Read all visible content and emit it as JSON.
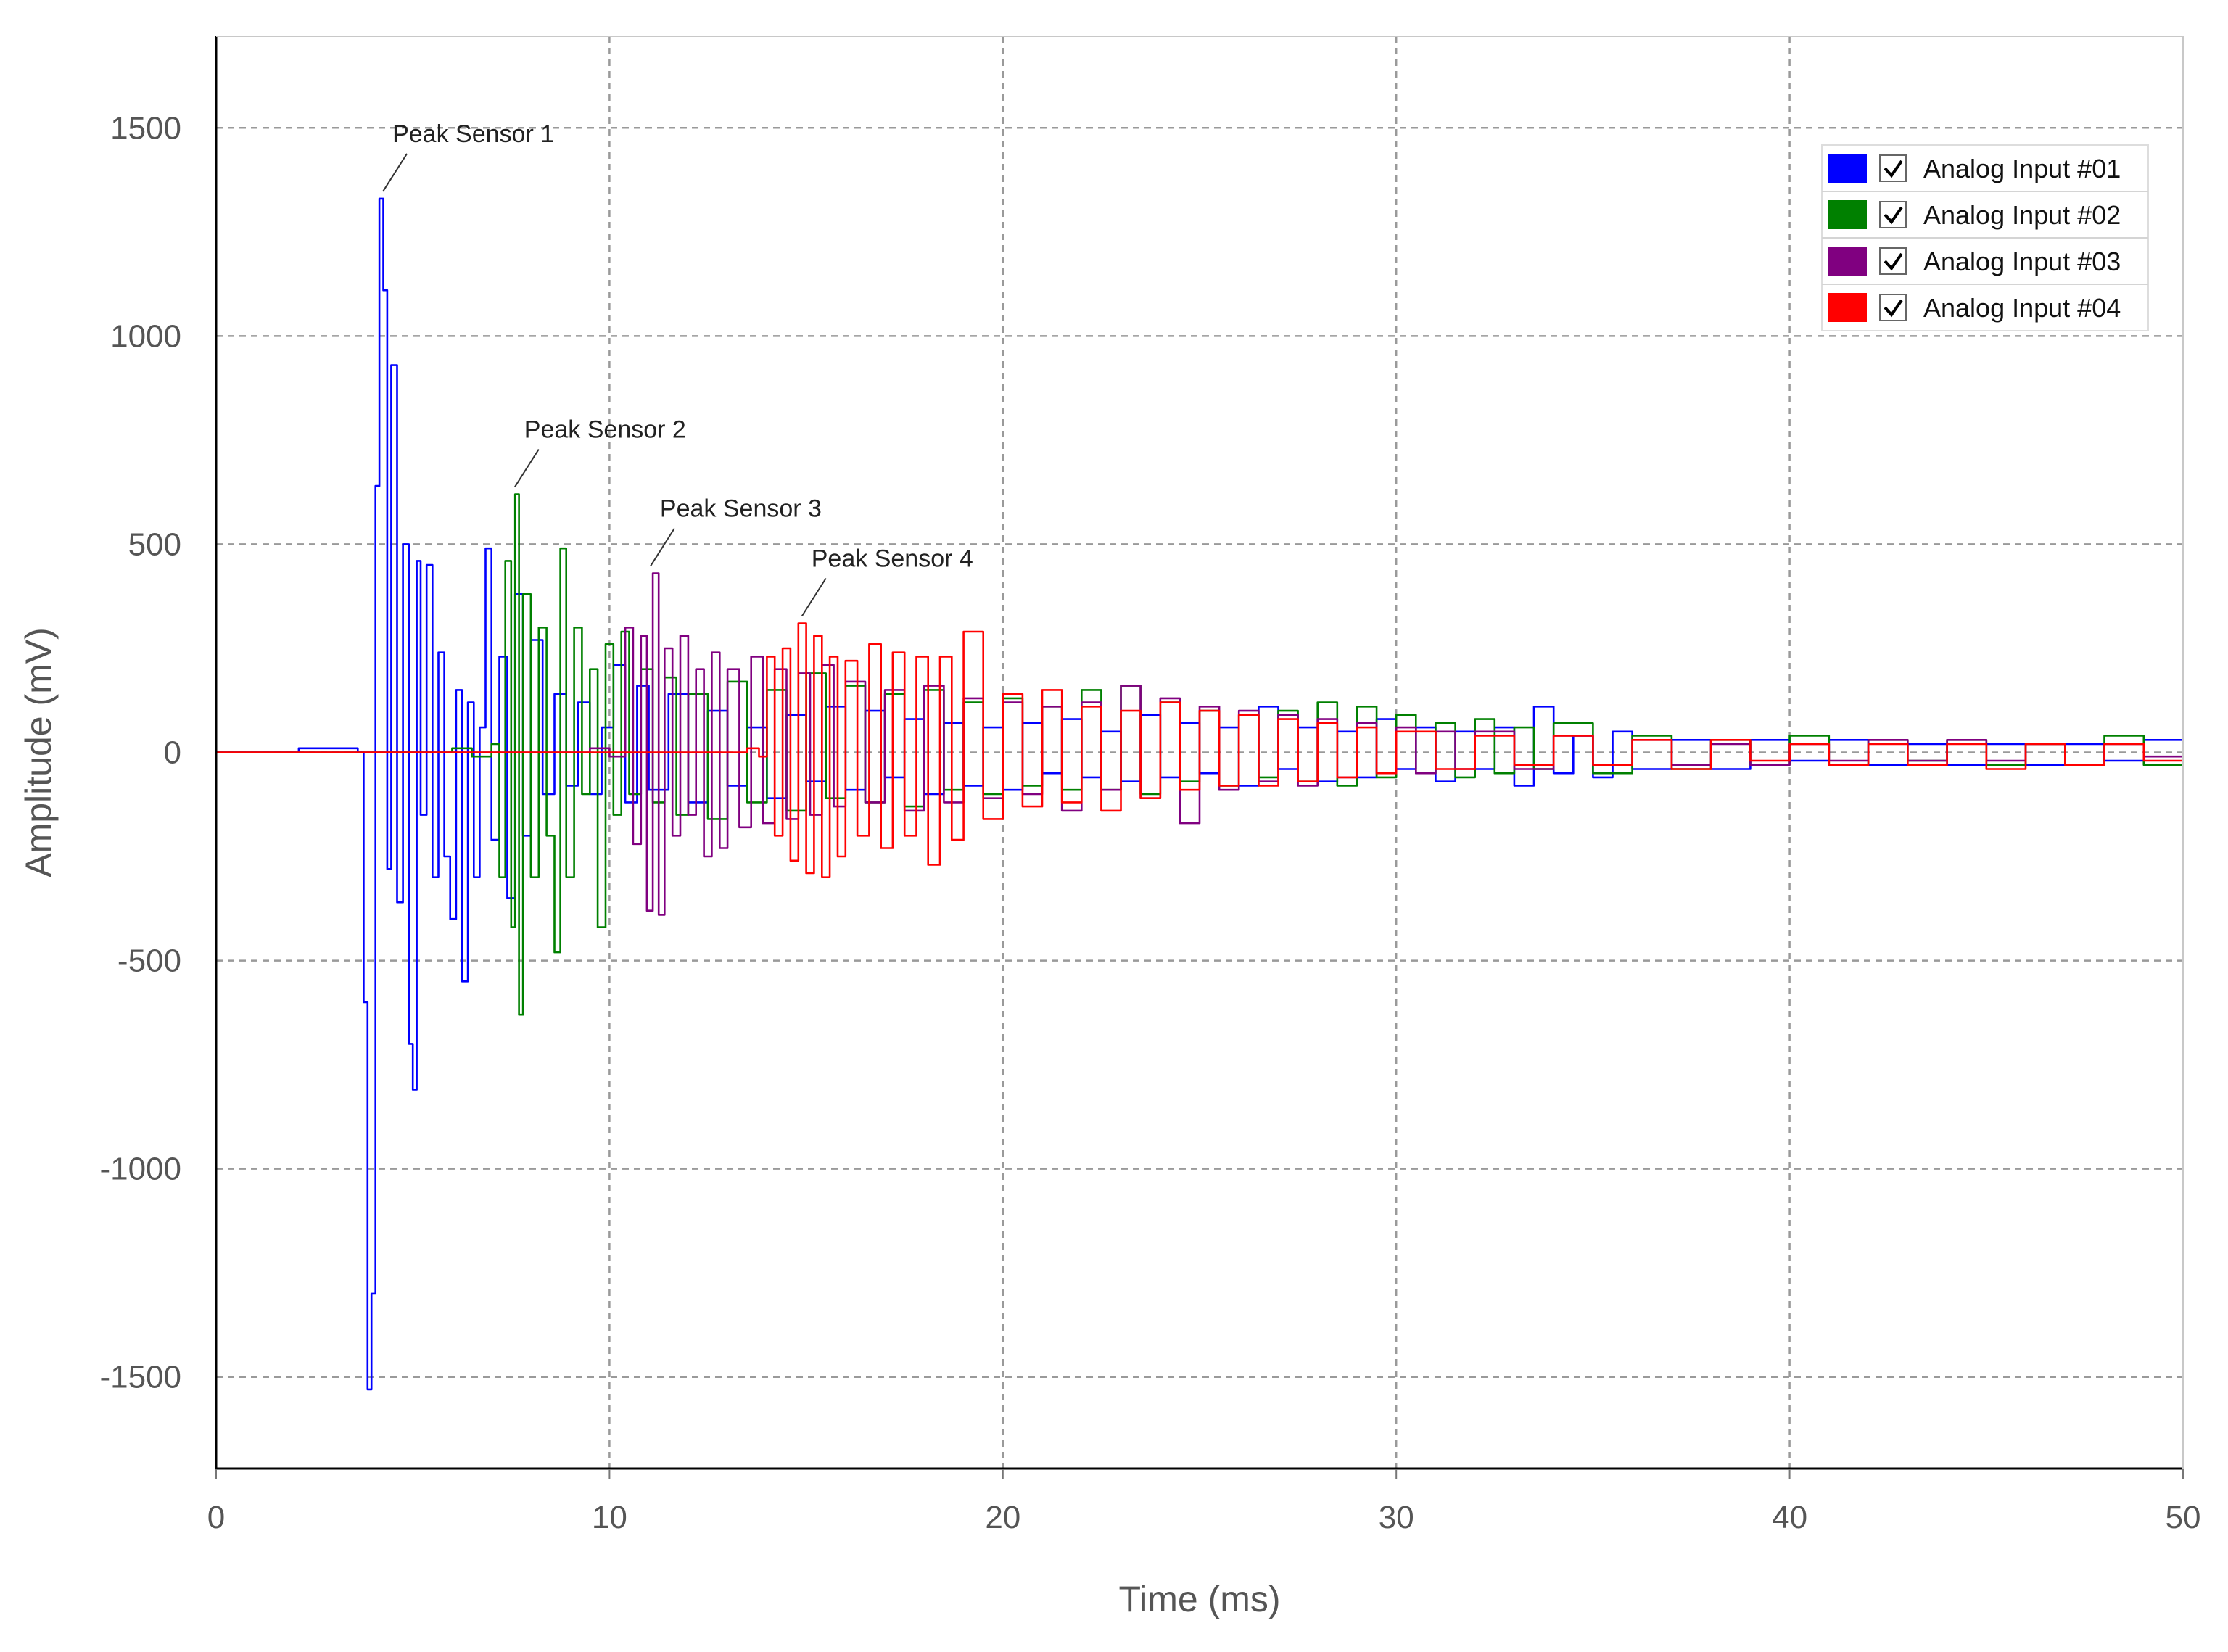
{
  "chart_data": {
    "type": "line",
    "xlabel": "Time (ms)",
    "ylabel": "Amplitude (mV)",
    "xlim": [
      0,
      50
    ],
    "ylim": [
      -1720,
      1720
    ],
    "x_ticks": [
      0,
      10,
      20,
      30,
      40,
      50
    ],
    "y_ticks": [
      -1500,
      -1000,
      -500,
      0,
      500,
      1000,
      1500
    ],
    "grid": true,
    "legend_position": "top-right",
    "series": [
      {
        "name": "Analog Input #01",
        "color": "#0000ff",
        "checked": true,
        "x": [
          0,
          1.8,
          2.1,
          3.6,
          3.75,
          3.85,
          3.95,
          4.05,
          4.15,
          4.25,
          4.35,
          4.45,
          4.6,
          4.75,
          4.9,
          5.0,
          5.1,
          5.2,
          5.35,
          5.5,
          5.65,
          5.8,
          5.95,
          6.1,
          6.25,
          6.4,
          6.55,
          6.7,
          6.85,
          7.0,
          7.2,
          7.4,
          7.6,
          7.8,
          8.0,
          8.3,
          8.6,
          8.9,
          9.2,
          9.5,
          9.8,
          10.1,
          10.4,
          10.7,
          11.0,
          11.5,
          12.0,
          12.5,
          13.0,
          13.5,
          14.0,
          14.5,
          15.0,
          15.5,
          16.0,
          16.5,
          17.0,
          17.5,
          18.0,
          18.5,
          19.0,
          19.5,
          20.0,
          20.5,
          21.0,
          21.5,
          22.0,
          22.5,
          23.0,
          23.5,
          24.0,
          24.5,
          25.0,
          25.5,
          26.0,
          26.5,
          27.0,
          27.5,
          28.0,
          28.5,
          29.0,
          29.5,
          30.0,
          30.5,
          31.0,
          31.5,
          32.0,
          32.5,
          33.0,
          33.5,
          34.0,
          34.5,
          35.0,
          35.5,
          36.0,
          37.0,
          38.0,
          39.0,
          40.0,
          41.0,
          42.0,
          43.0,
          44.0,
          45.0,
          46.0,
          47.0,
          48.0,
          49.0,
          50.0
        ],
        "y": [
          0,
          0,
          10,
          0,
          -600,
          -1530,
          -1300,
          640,
          1330,
          1110,
          -280,
          930,
          -360,
          500,
          -700,
          -810,
          460,
          -150,
          450,
          -300,
          240,
          -250,
          -400,
          150,
          -550,
          120,
          -300,
          60,
          490,
          -210,
          230,
          -350,
          380,
          -200,
          270,
          -100,
          140,
          -80,
          120,
          -100,
          60,
          210,
          -120,
          160,
          -90,
          140,
          -120,
          100,
          -80,
          60,
          -110,
          90,
          -70,
          110,
          -90,
          100,
          -60,
          80,
          -100,
          70,
          -80,
          60,
          -90,
          70,
          -50,
          80,
          -60,
          50,
          -70,
          90,
          -60,
          70,
          -50,
          60,
          -80,
          110,
          -40,
          60,
          -70,
          50,
          -60,
          80,
          -40,
          60,
          -70,
          50,
          -40,
          60,
          -80,
          110,
          -50,
          40,
          -60,
          50,
          -40,
          30,
          -40,
          30,
          -20,
          30,
          -30,
          20,
          -30,
          20,
          -30,
          20,
          -20,
          30,
          0
        ]
      },
      {
        "name": "Analog Input #02",
        "color": "#008000",
        "checked": true,
        "x": [
          0,
          5.5,
          6.0,
          6.5,
          7.0,
          7.2,
          7.35,
          7.5,
          7.6,
          7.7,
          7.8,
          8.0,
          8.2,
          8.4,
          8.6,
          8.75,
          8.9,
          9.1,
          9.3,
          9.5,
          9.7,
          9.9,
          10.1,
          10.3,
          10.5,
          10.8,
          11.1,
          11.4,
          11.7,
          12.0,
          12.5,
          13.0,
          13.5,
          14.0,
          14.5,
          15.0,
          15.5,
          16.0,
          16.5,
          17.0,
          17.5,
          18.0,
          18.5,
          19.0,
          19.5,
          20.0,
          20.5,
          21.0,
          21.5,
          22.0,
          22.5,
          23.0,
          23.5,
          24.0,
          24.5,
          25.0,
          25.5,
          26.0,
          26.5,
          27.0,
          27.5,
          28.0,
          28.5,
          29.0,
          29.5,
          30.0,
          30.5,
          31.0,
          31.5,
          32.0,
          32.5,
          33.0,
          33.5,
          34.0,
          35.0,
          36.0,
          37.0,
          38.0,
          39.0,
          40.0,
          41.0,
          42.0,
          43.0,
          44.0,
          45.0,
          46.0,
          47.0,
          48.0,
          49.0,
          50.0
        ],
        "y": [
          0,
          0,
          10,
          -10,
          20,
          -300,
          460,
          -420,
          620,
          -630,
          380,
          -300,
          300,
          -200,
          -480,
          490,
          -300,
          300,
          -100,
          200,
          -420,
          260,
          -150,
          290,
          -100,
          200,
          -120,
          180,
          -150,
          140,
          -160,
          170,
          -120,
          150,
          -140,
          190,
          -110,
          160,
          -120,
          140,
          -130,
          150,
          -90,
          120,
          -100,
          130,
          -80,
          110,
          -90,
          150,
          -90,
          160,
          -100,
          120,
          -70,
          100,
          -80,
          90,
          -60,
          100,
          -70,
          120,
          -80,
          110,
          -60,
          90,
          -50,
          70,
          -60,
          80,
          -50,
          60,
          -40,
          70,
          -50,
          40,
          -40,
          30,
          -30,
          40,
          -30,
          30,
          -20,
          30,
          -30,
          20,
          -30,
          40,
          -30,
          -40
        ]
      },
      {
        "name": "Analog Input #03",
        "color": "#800080",
        "checked": true,
        "x": [
          0,
          9.0,
          9.5,
          10.0,
          10.4,
          10.6,
          10.8,
          10.95,
          11.1,
          11.25,
          11.4,
          11.6,
          11.8,
          12.0,
          12.2,
          12.4,
          12.6,
          12.8,
          13.0,
          13.3,
          13.6,
          13.9,
          14.2,
          14.5,
          14.8,
          15.1,
          15.4,
          15.7,
          16.0,
          16.5,
          17.0,
          17.5,
          18.0,
          18.5,
          19.0,
          19.5,
          20.0,
          20.5,
          21.0,
          21.5,
          22.0,
          22.5,
          23.0,
          23.5,
          24.0,
          24.5,
          25.0,
          25.5,
          26.0,
          26.5,
          27.0,
          27.5,
          28.0,
          28.5,
          29.0,
          29.5,
          30.0,
          30.5,
          31.0,
          31.5,
          32.0,
          33.0,
          34.0,
          35.0,
          36.0,
          37.0,
          38.0,
          39.0,
          40.0,
          41.0,
          42.0,
          43.0,
          44.0,
          45.0,
          46.0,
          47.0,
          48.0,
          49.0,
          50.0
        ],
        "y": [
          0,
          0,
          10,
          -10,
          300,
          -220,
          280,
          -380,
          430,
          -390,
          250,
          -200,
          280,
          -150,
          200,
          -250,
          240,
          -230,
          200,
          -180,
          230,
          -170,
          200,
          -160,
          190,
          -150,
          210,
          -130,
          170,
          -120,
          150,
          -140,
          160,
          -120,
          130,
          -110,
          120,
          -100,
          110,
          -140,
          120,
          -90,
          160,
          -110,
          130,
          -170,
          110,
          -90,
          100,
          -70,
          90,
          -80,
          80,
          -60,
          70,
          -50,
          60,
          -50,
          50,
          -40,
          50,
          -40,
          40,
          -30,
          30,
          -30,
          20,
          -30,
          20,
          -20,
          30,
          -20,
          30,
          -20,
          20,
          -30,
          20,
          -10,
          0
        ]
      },
      {
        "name": "Analog Input #04",
        "color": "#ff0000",
        "checked": true,
        "x": [
          0,
          13.0,
          13.5,
          13.8,
          14.0,
          14.2,
          14.4,
          14.6,
          14.8,
          15.0,
          15.2,
          15.4,
          15.6,
          15.8,
          16.0,
          16.3,
          16.6,
          16.9,
          17.2,
          17.5,
          17.8,
          18.1,
          18.4,
          18.7,
          19.0,
          19.5,
          20.0,
          20.5,
          21.0,
          21.5,
          22.0,
          22.5,
          23.0,
          23.5,
          24.0,
          24.5,
          25.0,
          25.5,
          26.0,
          26.5,
          27.0,
          27.5,
          28.0,
          28.5,
          29.0,
          29.5,
          30.0,
          31.0,
          32.0,
          33.0,
          34.0,
          35.0,
          36.0,
          37.0,
          38.0,
          39.0,
          40.0,
          41.0,
          42.0,
          43.0,
          44.0,
          45.0,
          46.0,
          47.0,
          48.0,
          49.0,
          50.0
        ],
        "y": [
          0,
          0,
          10,
          -10,
          230,
          -200,
          250,
          -260,
          310,
          -290,
          280,
          -300,
          230,
          -250,
          220,
          -200,
          260,
          -230,
          240,
          -200,
          230,
          -270,
          230,
          -210,
          290,
          -160,
          140,
          -130,
          150,
          -120,
          110,
          -140,
          100,
          -110,
          120,
          -90,
          100,
          -80,
          90,
          -80,
          80,
          -70,
          70,
          -60,
          60,
          -50,
          50,
          -40,
          40,
          -30,
          40,
          -30,
          30,
          -40,
          30,
          -20,
          20,
          -30,
          20,
          -30,
          20,
          -40,
          20,
          -30,
          20,
          -20,
          0
        ]
      }
    ],
    "annotations": [
      {
        "text": "Peak Sensor 1",
        "x": 4.15,
        "y": 1330
      },
      {
        "text": "Peak Sensor 2",
        "x": 7.5,
        "y": 620
      },
      {
        "text": "Peak Sensor 3",
        "x": 10.95,
        "y": 430
      },
      {
        "text": "Peak Sensor 4",
        "x": 14.8,
        "y": 310
      }
    ]
  }
}
